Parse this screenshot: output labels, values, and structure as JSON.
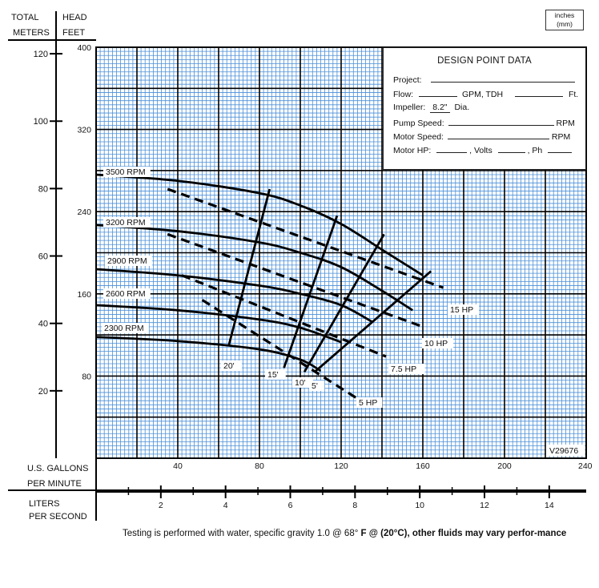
{
  "header": {
    "total_label": "TOTAL",
    "meters_label": "METERS",
    "head_label": "HEAD",
    "feet_label": "FEET",
    "units_line1": "inches",
    "units_line2": "(mm)"
  },
  "design_point": {
    "title": "DESIGN POINT DATA",
    "project": "Project:",
    "flow": "Flow:",
    "gpm_tdh": "GPM, TDH",
    "ft": "Ft.",
    "impeller": "Impeller:",
    "impeller_value": "8.2\"",
    "dia": "Dia.",
    "pump_speed": "Pump Speed:",
    "motor_speed": "Motor Speed:",
    "rpm": "RPM",
    "motor_hp": "Motor HP:",
    "volts": ", Volts",
    "ph": ", Ph"
  },
  "bottom_axes": {
    "gpm_label_1": "U.S. GALLONS",
    "gpm_label_2": "PER MINUTE",
    "lps_label_1": "LITERS",
    "lps_label_2": "PER SECOND"
  },
  "code": "V29676",
  "footnote_normal": "Testing is performed with water, specific gravity 1.0 @ 68° ",
  "footnote_bold": "F @ (20°C), other fluids may vary perfor-mance",
  "colors": {
    "grid_minor": "#4a8fd8",
    "grid_major": "#000000",
    "curve": "#000000"
  },
  "chart_data": {
    "type": "line",
    "x_axis": {
      "label": "U.S. GALLONS PER MINUTE",
      "range": [
        0,
        240
      ],
      "ticks": [
        40,
        80,
        120,
        160,
        200,
        240
      ]
    },
    "x2_axis": {
      "label": "LITERS PER SECOND",
      "ticks": [
        2,
        4,
        6,
        8,
        10,
        12,
        14
      ]
    },
    "y_axis": {
      "label": "HEAD FEET",
      "range": [
        0,
        400
      ],
      "ticks": [
        80,
        160,
        240,
        320,
        400
      ]
    },
    "y2_axis": {
      "label": "TOTAL METERS",
      "ticks": [
        20,
        40,
        60,
        80,
        100,
        120
      ]
    },
    "grid": true,
    "series": [
      {
        "name": "3500 RPM",
        "points": [
          [
            0,
            276
          ],
          [
            40,
            270
          ],
          [
            80,
            258
          ],
          [
            100,
            246
          ],
          [
            120,
            228
          ],
          [
            140,
            203
          ],
          [
            160,
            178
          ]
        ]
      },
      {
        "name": "3200 RPM",
        "points": [
          [
            0,
            227
          ],
          [
            40,
            221
          ],
          [
            80,
            210
          ],
          [
            100,
            200
          ],
          [
            120,
            186
          ],
          [
            140,
            163
          ],
          [
            155,
            144
          ]
        ]
      },
      {
        "name": "2900 RPM",
        "points": [
          [
            0,
            184
          ],
          [
            40,
            178
          ],
          [
            80,
            168
          ],
          [
            100,
            160
          ],
          [
            120,
            149
          ],
          [
            135,
            133
          ]
        ]
      },
      {
        "name": "2600 RPM",
        "points": [
          [
            0,
            149
          ],
          [
            40,
            144
          ],
          [
            80,
            135
          ],
          [
            100,
            127
          ],
          [
            120,
            113
          ]
        ]
      },
      {
        "name": "2300 RPM",
        "points": [
          [
            0,
            118
          ],
          [
            40,
            114
          ],
          [
            80,
            106
          ],
          [
            100,
            96
          ],
          [
            110,
            85
          ]
        ]
      }
    ],
    "npsh_lines": [
      {
        "name": "20'",
        "points": [
          [
            65,
            110
          ],
          [
            85,
            262
          ]
        ]
      },
      {
        "name": "15'",
        "points": [
          [
            92,
            88
          ],
          [
            118,
            236
          ]
        ]
      },
      {
        "name": "10'",
        "points": [
          [
            102,
            84
          ],
          [
            141,
            218
          ]
        ]
      },
      {
        "name": "5'",
        "points": [
          [
            107,
            84
          ],
          [
            164,
            182
          ]
        ]
      }
    ],
    "hp_lines": [
      {
        "name": "15 HP",
        "points": [
          [
            35,
            262
          ],
          [
            170,
            166
          ]
        ]
      },
      {
        "name": "10 HP",
        "points": [
          [
            35,
            218
          ],
          [
            160,
            128
          ]
        ]
      },
      {
        "name": "7.5 HP",
        "points": [
          [
            42,
            178
          ],
          [
            142,
            99
          ]
        ]
      },
      {
        "name": "5 HP",
        "points": [
          [
            52,
            154
          ],
          [
            128,
            58
          ]
        ]
      }
    ]
  }
}
